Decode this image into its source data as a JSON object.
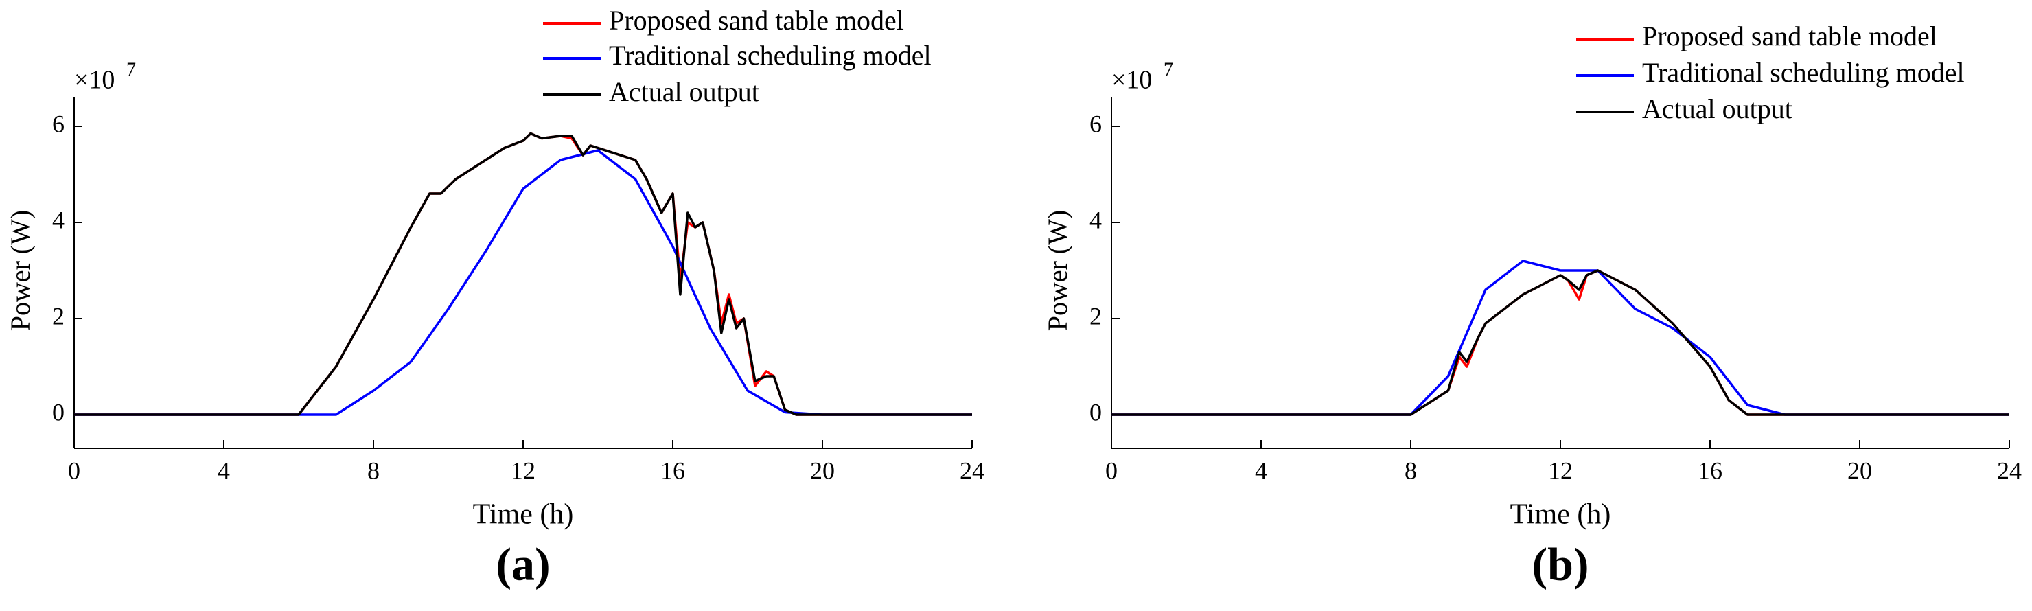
{
  "chart_data": [
    {
      "type": "line",
      "panel_label": "(a)",
      "xlabel": "Time (h)",
      "ylabel": "Power (W)",
      "y_multiplier": "×10",
      "y_exponent": "7",
      "xlim": [
        0,
        24
      ],
      "xticks": [
        0,
        4,
        8,
        12,
        16,
        20,
        24
      ],
      "ylim": [
        -0.7,
        6.6
      ],
      "yticks": [
        0,
        2,
        4,
        6
      ],
      "series": [
        {
          "name": "Proposed sand table model",
          "color": "#ff0000",
          "x": [
            0,
            6,
            7,
            8,
            9,
            9.5,
            9.8,
            10.2,
            11,
            11.5,
            12,
            12.2,
            12.5,
            13,
            13.3,
            13.6,
            13.8,
            14,
            15,
            15.3,
            15.7,
            16,
            16.2,
            16.4,
            16.6,
            16.8,
            17.1,
            17.3,
            17.5,
            17.7,
            17.9,
            18.2,
            18.5,
            18.7,
            19,
            19.3,
            20,
            24
          ],
          "values": [
            0,
            0,
            1.0,
            2.4,
            3.9,
            4.6,
            4.6,
            4.9,
            5.3,
            5.55,
            5.7,
            5.85,
            5.75,
            5.8,
            5.75,
            5.4,
            5.6,
            5.55,
            5.3,
            4.9,
            4.2,
            4.6,
            2.8,
            4.0,
            3.9,
            4.0,
            3.0,
            1.9,
            2.5,
            1.9,
            2.0,
            0.6,
            0.9,
            0.8,
            0.1,
            0,
            0,
            0
          ]
        },
        {
          "name": "Traditional scheduling model",
          "color": "#0000ff",
          "x": [
            0,
            7,
            8,
            9,
            10,
            11,
            12,
            13,
            14,
            15,
            16,
            17,
            18,
            19,
            20,
            24
          ],
          "values": [
            0,
            0,
            0.5,
            1.1,
            2.2,
            3.4,
            4.7,
            5.3,
            5.5,
            4.9,
            3.5,
            1.8,
            0.5,
            0.05,
            0,
            0
          ]
        },
        {
          "name": "Actual output",
          "color": "#000000",
          "x": [
            0,
            6,
            7,
            8,
            9,
            9.5,
            9.8,
            10.2,
            11,
            11.5,
            12,
            12.2,
            12.5,
            13,
            13.3,
            13.6,
            13.8,
            14,
            15,
            15.3,
            15.7,
            16,
            16.2,
            16.4,
            16.6,
            16.8,
            17.1,
            17.3,
            17.5,
            17.7,
            17.9,
            18.2,
            18.5,
            18.7,
            19,
            19.3,
            20,
            24
          ],
          "values": [
            0,
            0,
            1.0,
            2.4,
            3.9,
            4.6,
            4.6,
            4.9,
            5.3,
            5.55,
            5.7,
            5.85,
            5.75,
            5.8,
            5.8,
            5.4,
            5.6,
            5.55,
            5.3,
            4.9,
            4.2,
            4.6,
            2.5,
            4.2,
            3.9,
            4.0,
            3.0,
            1.7,
            2.4,
            1.8,
            2.0,
            0.7,
            0.8,
            0.8,
            0.1,
            0,
            0,
            0
          ]
        }
      ]
    },
    {
      "type": "line",
      "panel_label": "(b)",
      "xlabel": "Time (h)",
      "ylabel": "Power (W)",
      "y_multiplier": "×10",
      "y_exponent": "7",
      "xlim": [
        0,
        24
      ],
      "xticks": [
        0,
        4,
        8,
        12,
        16,
        20,
        24
      ],
      "ylim": [
        -0.7,
        6.6
      ],
      "yticks": [
        0,
        2,
        4,
        6
      ],
      "series": [
        {
          "name": "Proposed sand table model",
          "color": "#ff0000",
          "x": [
            0,
            8,
            9,
            9.3,
            9.5,
            9.8,
            10,
            11,
            12,
            12.2,
            12.5,
            12.7,
            13,
            14,
            15,
            16,
            16.5,
            17,
            24
          ],
          "values": [
            0,
            0,
            0.5,
            1.2,
            1.0,
            1.6,
            1.9,
            2.5,
            2.9,
            2.8,
            2.4,
            2.9,
            3.0,
            2.6,
            1.9,
            1.0,
            0.3,
            0,
            0
          ]
        },
        {
          "name": "Traditional scheduling model",
          "color": "#0000ff",
          "x": [
            0,
            8,
            9,
            10,
            11,
            12,
            13,
            14,
            15,
            16,
            17,
            18,
            24
          ],
          "values": [
            0,
            0,
            0.8,
            2.6,
            3.2,
            3.0,
            3.0,
            2.2,
            1.8,
            1.2,
            0.2,
            0,
            0
          ]
        },
        {
          "name": "Actual output",
          "color": "#000000",
          "x": [
            0,
            8,
            9,
            9.3,
            9.5,
            9.8,
            10,
            11,
            12,
            12.2,
            12.5,
            12.7,
            13,
            14,
            15,
            16,
            16.5,
            17,
            24
          ],
          "values": [
            0,
            0,
            0.5,
            1.3,
            1.1,
            1.6,
            1.9,
            2.5,
            2.9,
            2.8,
            2.6,
            2.9,
            3.0,
            2.6,
            1.9,
            1.0,
            0.3,
            0,
            0
          ]
        }
      ]
    }
  ]
}
